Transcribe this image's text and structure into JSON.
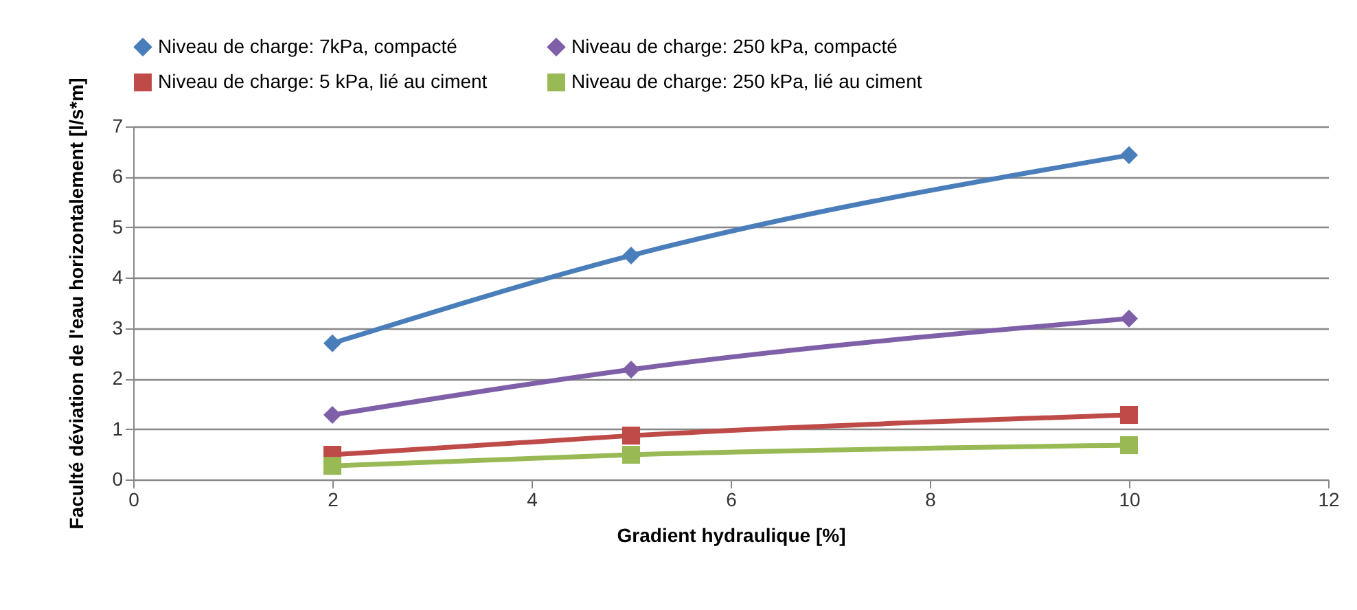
{
  "chart_data": {
    "type": "line",
    "xlabel": "Gradient hydraulique [%]",
    "ylabel": "Faculté déviation de l'eau horizontalement [l/s*m]",
    "x": [
      2,
      5,
      10
    ],
    "xlim": [
      0,
      12
    ],
    "xticks": [
      0,
      2,
      4,
      6,
      8,
      10,
      12
    ],
    "ylim": [
      0,
      7
    ],
    "yticks": [
      0,
      1,
      2,
      3,
      4,
      5,
      6,
      7
    ],
    "grid": "y",
    "legend": "top",
    "line_style": "solid",
    "series": [
      {
        "name": "Niveau de charge: 7kPa, compacté",
        "color": "#4a7ebb",
        "marker": "diamond",
        "values": [
          2.7,
          4.44,
          6.43
        ]
      },
      {
        "name": "Niveau de charge: 250 kPa, compacté",
        "color": "#7f60a8",
        "marker": "diamond",
        "values": [
          1.28,
          2.18,
          3.19
        ]
      },
      {
        "name": "Niveau de charge: 5 kPa, lié au ciment",
        "color": "#be4b48",
        "marker": "square",
        "values": [
          0.49,
          0.87,
          1.28
        ]
      },
      {
        "name": "Niveau de charge: 250 kPa, lié au ciment",
        "color": "#98b954",
        "marker": "square",
        "values": [
          0.27,
          0.49,
          0.68
        ]
      }
    ]
  }
}
